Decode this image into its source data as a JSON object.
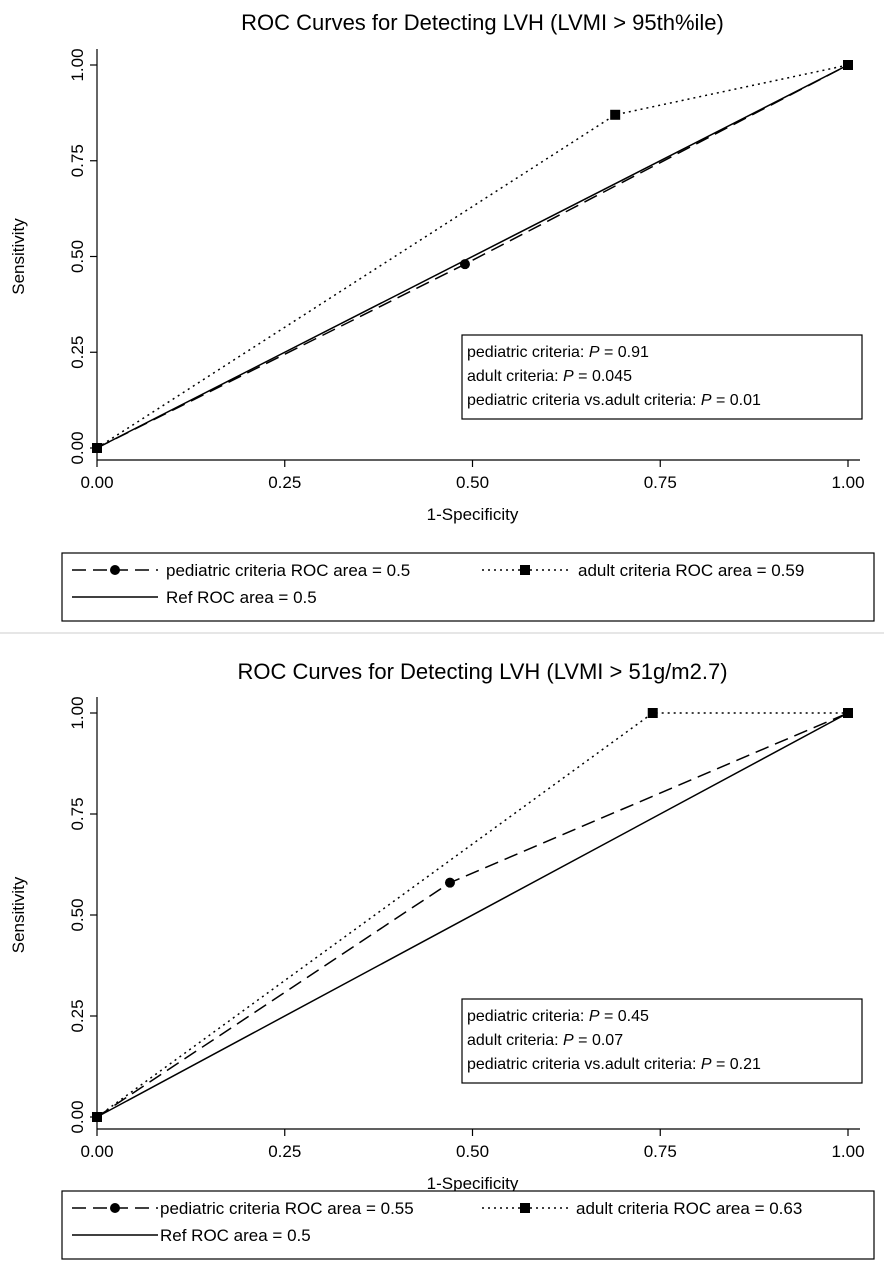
{
  "chart_data": [
    {
      "type": "line",
      "title": "ROC Curves for Detecting LVH (LVMI > 95th%ile)",
      "xlabel": "1-Specificity",
      "ylabel": "Sensitivity",
      "xlim": [
        0,
        1
      ],
      "ylim": [
        0,
        1
      ],
      "xticks": [
        "0.00",
        "0.25",
        "0.50",
        "0.75",
        "1.00"
      ],
      "yticks": [
        "0.00",
        "0.25",
        "0.50",
        "0.75",
        "1.00"
      ],
      "grid": false,
      "legend_position": "bottom",
      "series": [
        {
          "name": "pediatric criteria ROC area = 0.5",
          "style": "dashed",
          "marker": "circle",
          "points": [
            [
              0,
              0
            ],
            [
              0.49,
              0.48
            ],
            [
              1,
              1
            ]
          ]
        },
        {
          "name": "adult criteria ROC area = 0.59",
          "style": "dotted",
          "marker": "square",
          "points": [
            [
              0,
              0
            ],
            [
              0.69,
              0.87
            ],
            [
              1,
              1
            ]
          ]
        },
        {
          "name": "Ref ROC area = 0.5",
          "style": "solid",
          "marker": "none",
          "points": [
            [
              0,
              0
            ],
            [
              1,
              1
            ]
          ]
        }
      ],
      "stats": [
        {
          "label": "pediatric criteria: ",
          "p": "P",
          "value": " = 0.91"
        },
        {
          "label": "adult criteria: ",
          "p": "P",
          "value": " = 0.045"
        },
        {
          "label": "pediatric criteria vs.adult criteria: ",
          "p": "P",
          "value": " = 0.01"
        }
      ]
    },
    {
      "type": "line",
      "title": "ROC Curves for Detecting LVH (LVMI > 51g/m2.7)",
      "xlabel": "1-Specificity",
      "ylabel": "Sensitivity",
      "xlim": [
        0,
        1
      ],
      "ylim": [
        0,
        1
      ],
      "xticks": [
        "0.00",
        "0.25",
        "0.50",
        "0.75",
        "1.00"
      ],
      "yticks": [
        "0.00",
        "0.25",
        "0.50",
        "0.75",
        "1.00"
      ],
      "grid": false,
      "legend_position": "bottom",
      "series": [
        {
          "name": "pediatric criteria ROC area = 0.55",
          "style": "dashed",
          "marker": "circle",
          "points": [
            [
              0,
              0
            ],
            [
              0.47,
              0.58
            ],
            [
              1,
              1
            ]
          ]
        },
        {
          "name": "adult criteria ROC area = 0.63",
          "style": "dotted",
          "marker": "square",
          "points": [
            [
              0,
              0
            ],
            [
              0.74,
              1
            ],
            [
              1,
              1
            ]
          ]
        },
        {
          "name": "Ref ROC area = 0.5",
          "style": "solid",
          "marker": "none",
          "points": [
            [
              0,
              0
            ],
            [
              1,
              1
            ]
          ]
        }
      ],
      "stats": [
        {
          "label": "pediatric criteria: ",
          "p": "P",
          "value": " = 0.45"
        },
        {
          "label": "adult criteria: ",
          "p": "P",
          "value": " = 0.07"
        },
        {
          "label": "pediatric criteria vs.adult criteria: ",
          "p": "P",
          "value": " = 0.21"
        }
      ]
    }
  ],
  "colors": {
    "line": "#000000",
    "background": "#ffffff"
  }
}
